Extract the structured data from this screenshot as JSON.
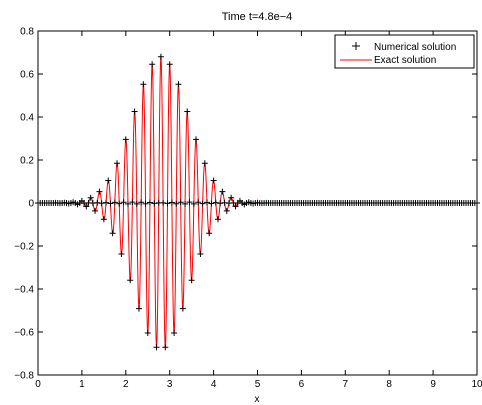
{
  "chart_data": {
    "type": "line",
    "title": "Time t=4.8e−4",
    "xlabel": "x",
    "ylabel": "",
    "xlim": [
      0,
      10
    ],
    "ylim": [
      -0.8,
      0.8
    ],
    "x_ticks": [
      0,
      1,
      2,
      3,
      4,
      5,
      6,
      7,
      8,
      9,
      10
    ],
    "x_tick_labels": [
      "0",
      "1",
      "2",
      "3",
      "4",
      "5",
      "6",
      "7",
      "8",
      "9",
      "10"
    ],
    "y_ticks": [
      -0.8,
      -0.6,
      -0.4,
      -0.2,
      0,
      0.2,
      0.4,
      0.6,
      0.8
    ],
    "y_tick_labels": [
      "−0.8",
      "−0.6",
      "−0.4",
      "−0.2",
      "0",
      "0.2",
      "0.4",
      "0.6",
      "0.8"
    ],
    "grid": false,
    "legend_position": "top-right",
    "wave_packet": {
      "center": 2.8,
      "amplitude": 0.68,
      "envelope_width": 0.62,
      "wavenumber": 31.4,
      "numerical_sample_spacing": 0.05
    },
    "series": [
      {
        "name": "Numerical solution",
        "style": "markers",
        "marker": "+",
        "color": "#000000"
      },
      {
        "name": "Exact solution",
        "style": "line",
        "color": "#ff0000"
      }
    ]
  }
}
